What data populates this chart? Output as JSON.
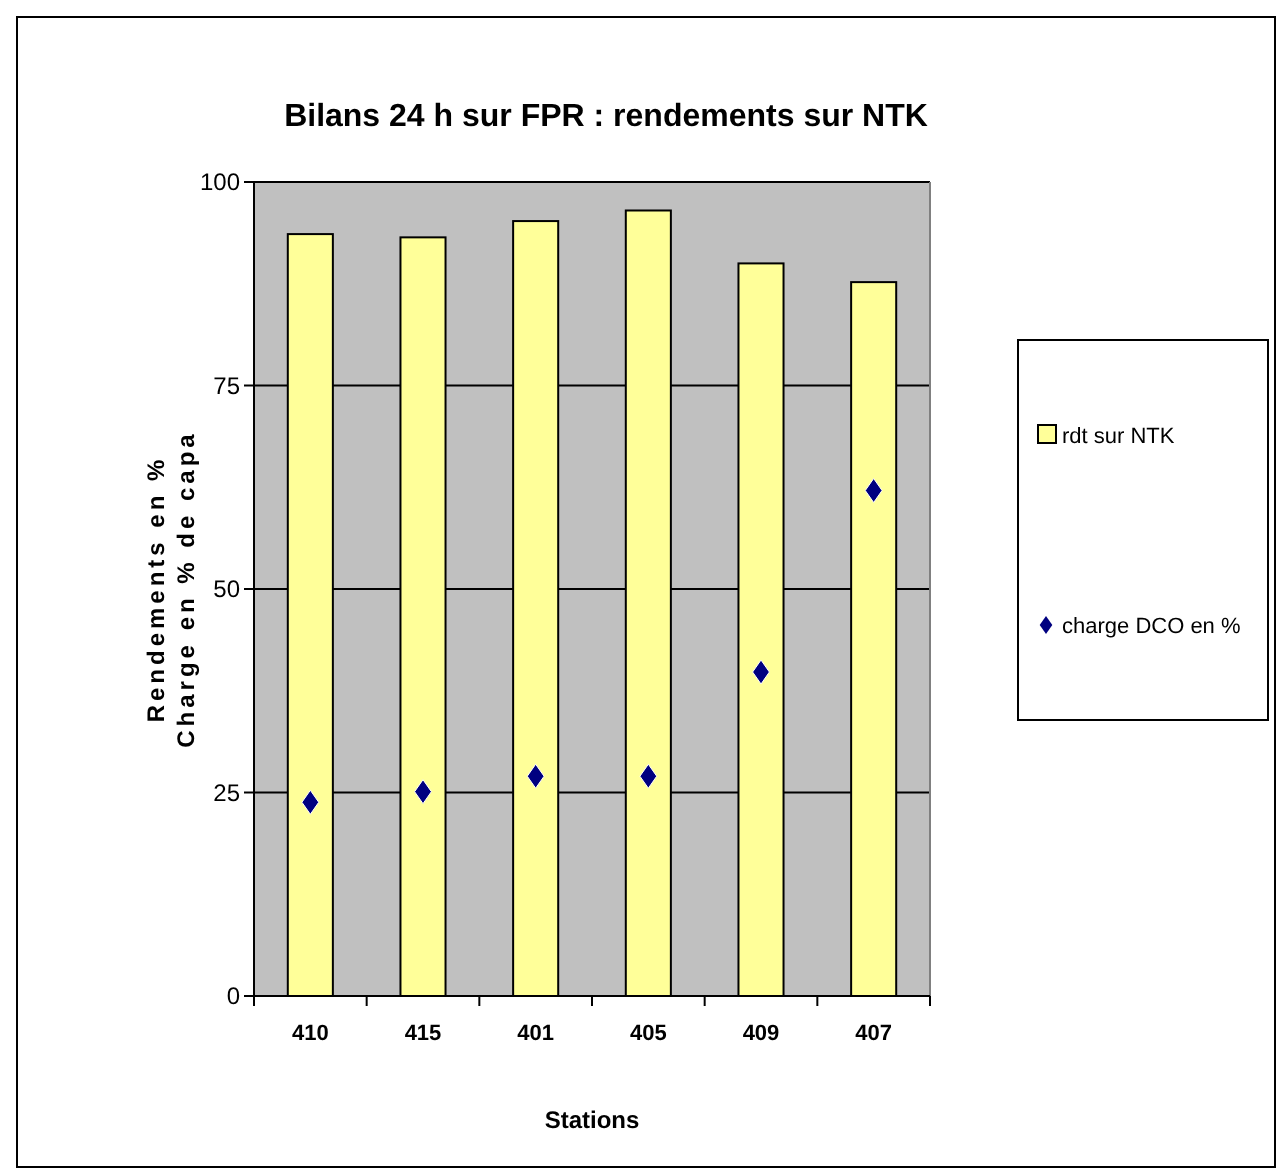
{
  "chart_data": {
    "type": "bar",
    "title": "Bilans 24 h sur FPR : rendements sur NTK",
    "xlabel": "Stations",
    "ylabel": "Rendements en %\nCharge en % de capa",
    "categories": [
      "410",
      "415",
      "401",
      "405",
      "409",
      "407"
    ],
    "series": [
      {
        "name": "rdt sur NTK",
        "color": "#ffff99",
        "values": [
          93.6,
          93.2,
          95.2,
          96.5,
          90.0,
          87.7
        ]
      },
      {
        "name": "charge DCO en %",
        "type": "scatter",
        "marker": "diamond",
        "color": "#000080",
        "values": [
          23.8,
          25.1,
          27.0,
          27.0,
          39.8,
          62.1
        ]
      }
    ],
    "ylim": [
      0,
      100
    ],
    "yticks": [
      0,
      25,
      50,
      75,
      100
    ],
    "grid": "y",
    "legend": "right"
  }
}
